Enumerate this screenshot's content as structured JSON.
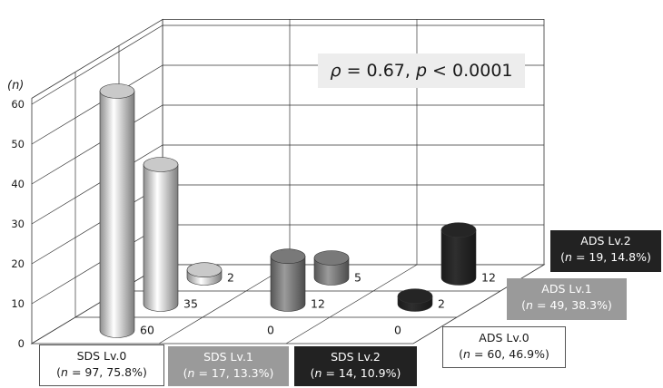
{
  "chart_data": {
    "type": "bar",
    "style": "3d-cylinder",
    "y_axis_label": "(n)",
    "ylim": [
      0,
      60
    ],
    "y_ticks": [
      0,
      10,
      20,
      30,
      40,
      50,
      60
    ],
    "grid": true,
    "annotation": {
      "rho_symbol": "ρ",
      "rho_text": " = 0.67, ",
      "p_symbol": "p",
      "p_text": " < 0.0001"
    },
    "sds_categories": [
      {
        "name": "SDS Lv.0",
        "n_text": "n",
        "stat": " = 97, 75.8%)",
        "color": "#e4e4e4"
      },
      {
        "name": "SDS Lv.1",
        "n_text": "n",
        "stat": " = 17, 13.3%)",
        "color": "#8a8a8a"
      },
      {
        "name": "SDS Lv.2",
        "n_text": "n",
        "stat": " = 14, 10.9%)",
        "color": "#2a2a2a"
      }
    ],
    "ads_categories": [
      {
        "name": "ADS Lv.0",
        "n_text": "n",
        "stat": " = 60, 46.9%)"
      },
      {
        "name": "ADS Lv.1",
        "n_text": "n",
        "stat": " = 49, 38.3%)"
      },
      {
        "name": "ADS Lv.2",
        "n_text": "n",
        "stat": " = 19, 14.8%)"
      }
    ],
    "values": [
      {
        "sds": "SDS Lv.0",
        "ads": "ADS Lv.0",
        "value": 60
      },
      {
        "sds": "SDS Lv.0",
        "ads": "ADS Lv.1",
        "value": 35
      },
      {
        "sds": "SDS Lv.0",
        "ads": "ADS Lv.2",
        "value": 2
      },
      {
        "sds": "SDS Lv.1",
        "ads": "ADS Lv.0",
        "value": 0
      },
      {
        "sds": "SDS Lv.1",
        "ads": "ADS Lv.1",
        "value": 12
      },
      {
        "sds": "SDS Lv.1",
        "ads": "ADS Lv.2",
        "value": 5
      },
      {
        "sds": "SDS Lv.2",
        "ads": "ADS Lv.0",
        "value": 0
      },
      {
        "sds": "SDS Lv.2",
        "ads": "ADS Lv.1",
        "value": 2
      },
      {
        "sds": "SDS Lv.2",
        "ads": "ADS Lv.2",
        "value": 12
      }
    ]
  }
}
